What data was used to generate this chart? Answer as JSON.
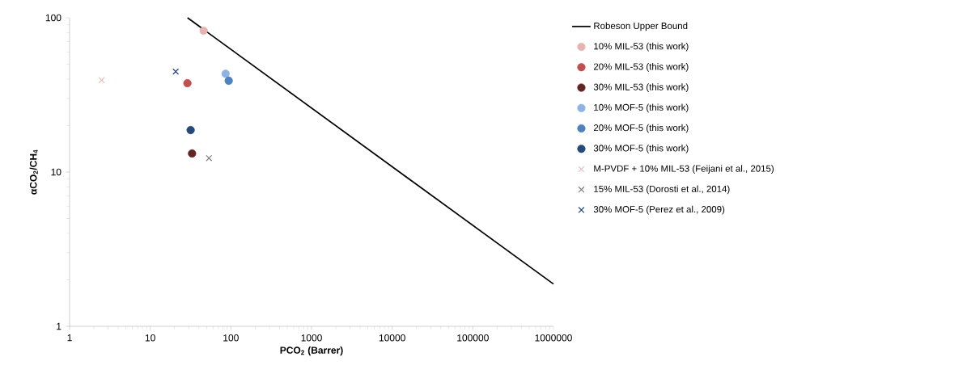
{
  "chart_data": {
    "type": "scatter",
    "xlabel": "PCO$_{2}$ (Barrer)",
    "ylabel": "αCO$_{2}$/CH$_{4}$",
    "log": "xy",
    "grid": false,
    "legend": "right",
    "xlim": [
      1,
      1000000
    ],
    "ylim": [
      1,
      100
    ],
    "xticks": [
      1,
      10,
      100,
      1000,
      10000,
      100000,
      1000000
    ],
    "yticks": [
      1,
      10,
      100
    ],
    "series": [
      {
        "name": "Robeson Upper Bound",
        "type": "line",
        "marker": "none",
        "line_style": "solid",
        "color": "#000000",
        "x": [
          29,
          1000000
        ],
        "values": [
          100,
          1.88
        ]
      },
      {
        "name": "10% MIL-53 (this work)",
        "marker": "circle",
        "color": "#e6b3b3",
        "x": [
          45.9
        ],
        "values": [
          82.5
        ]
      },
      {
        "name": "20% MIL-53 (this work)",
        "marker": "circle",
        "color": "#c0504d",
        "x": [
          28.9
        ],
        "values": [
          37.7
        ]
      },
      {
        "name": "30% MIL-53 (this work)",
        "marker": "circle",
        "color": "#632523",
        "x": [
          33
        ],
        "values": [
          13.2
        ]
      },
      {
        "name": "10% MOF-5 (this work)",
        "marker": "circle",
        "color": "#8db3e2",
        "x": [
          86
        ],
        "values": [
          43.4
        ]
      },
      {
        "name": "20% MOF-5 (this work)",
        "marker": "circle",
        "color": "#4f81bd",
        "x": [
          94
        ],
        "values": [
          39.1
        ]
      },
      {
        "name": "30% MOF-5 (this work)",
        "marker": "circle",
        "color": "#254a78",
        "x": [
          31.7
        ],
        "values": [
          18.7
        ]
      },
      {
        "name": "M-PVDF + 10% MIL-53 (Feijani et al., 2015)",
        "marker": "cross",
        "color": "#e6b9b8",
        "x": [
          2.5
        ],
        "values": [
          39.4
        ]
      },
      {
        "name": "15% MIL-53 (Dorosti et al., 2014)",
        "marker": "cross",
        "color": "#7f7f7f",
        "x": [
          53.5
        ],
        "values": [
          12.3
        ]
      },
      {
        "name": "30% MOF-5 (Perez et al., 2009)",
        "marker": "cross",
        "color": "#1f497d",
        "x": [
          20.7
        ],
        "values": [
          44.8
        ]
      }
    ]
  }
}
